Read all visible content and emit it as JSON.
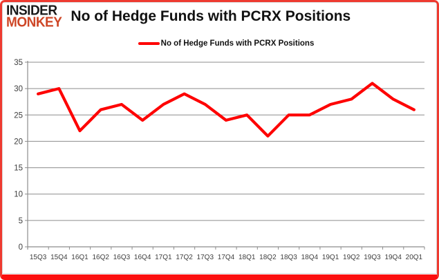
{
  "header": {
    "logo": {
      "line1": "INSIDER",
      "line2": "MONKEY"
    },
    "title": "No of Hedge Funds with PCRX Positions"
  },
  "legend": {
    "label": "No of Hedge Funds with PCRX Positions"
  },
  "colors": {
    "line": "#fe0000",
    "grid": "#8c8c8c",
    "axis": "#8c8c8c",
    "axis_label": "#3d3d3d",
    "logo_primary": "#1a1a1a",
    "logo_accent": "#ce4727",
    "frame_border": "#ee3a30",
    "bottom_bar": "#fb0f0f"
  },
  "chart_data": {
    "type": "line",
    "title": "No of Hedge Funds with PCRX Positions",
    "categories": [
      "15Q3",
      "15Q4",
      "16Q1",
      "16Q2",
      "16Q3",
      "16Q4",
      "17Q1",
      "17Q2",
      "17Q3",
      "17Q4",
      "18Q1",
      "18Q2",
      "18Q3",
      "18Q4",
      "19Q1",
      "19Q2",
      "19Q3",
      "19Q4",
      "20Q1"
    ],
    "series": [
      {
        "name": "No of Hedge Funds with PCRX Positions",
        "color": "#fe0000",
        "values": [
          29,
          30,
          22,
          26,
          27,
          24,
          27,
          29,
          27,
          24,
          25,
          21,
          25,
          25,
          27,
          28,
          31,
          28,
          26
        ]
      }
    ],
    "xlabel": "",
    "ylabel": "",
    "ylim": [
      0,
      35
    ],
    "ytick_step": 5,
    "grid": true,
    "legend_position": "top-center"
  }
}
